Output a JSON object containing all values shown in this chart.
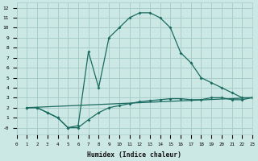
{
  "xlabel": "Humidex (Indice chaleur)",
  "xlim": [
    0,
    23
  ],
  "ylim": [
    -0.7,
    12.5
  ],
  "background_color": "#cce8e5",
  "grid_color": "#a8ceca",
  "line_color": "#1a6b60",
  "curve1_x": [
    1,
    2,
    3,
    4,
    5,
    6,
    7,
    8,
    9,
    10,
    11,
    12,
    13,
    14,
    15,
    16,
    17,
    18,
    19,
    20,
    21,
    22,
    23
  ],
  "curve1_y": [
    2,
    2,
    1.5,
    1.0,
    0.0,
    0.2,
    7.6,
    4.0,
    9.0,
    10.0,
    11.0,
    11.5,
    11.5,
    11.0,
    10.0,
    7.5,
    6.5,
    5.0,
    4.5,
    4.0,
    3.5,
    3.0,
    3.0
  ],
  "curve2_x": [
    1,
    2,
    3,
    4,
    5,
    6,
    7,
    8,
    9,
    10,
    11,
    12,
    13,
    14,
    15,
    16,
    17,
    18,
    19,
    20,
    21,
    22,
    23
  ],
  "curve2_y": [
    2,
    2,
    1.5,
    1.0,
    0.0,
    0.0,
    0.8,
    1.5,
    2.0,
    2.2,
    2.4,
    2.6,
    2.7,
    2.8,
    2.9,
    2.9,
    2.8,
    2.8,
    3.0,
    3.0,
    2.8,
    2.8,
    3.0
  ],
  "curve3_x": [
    1,
    23
  ],
  "curve3_y": [
    2.0,
    3.0
  ]
}
